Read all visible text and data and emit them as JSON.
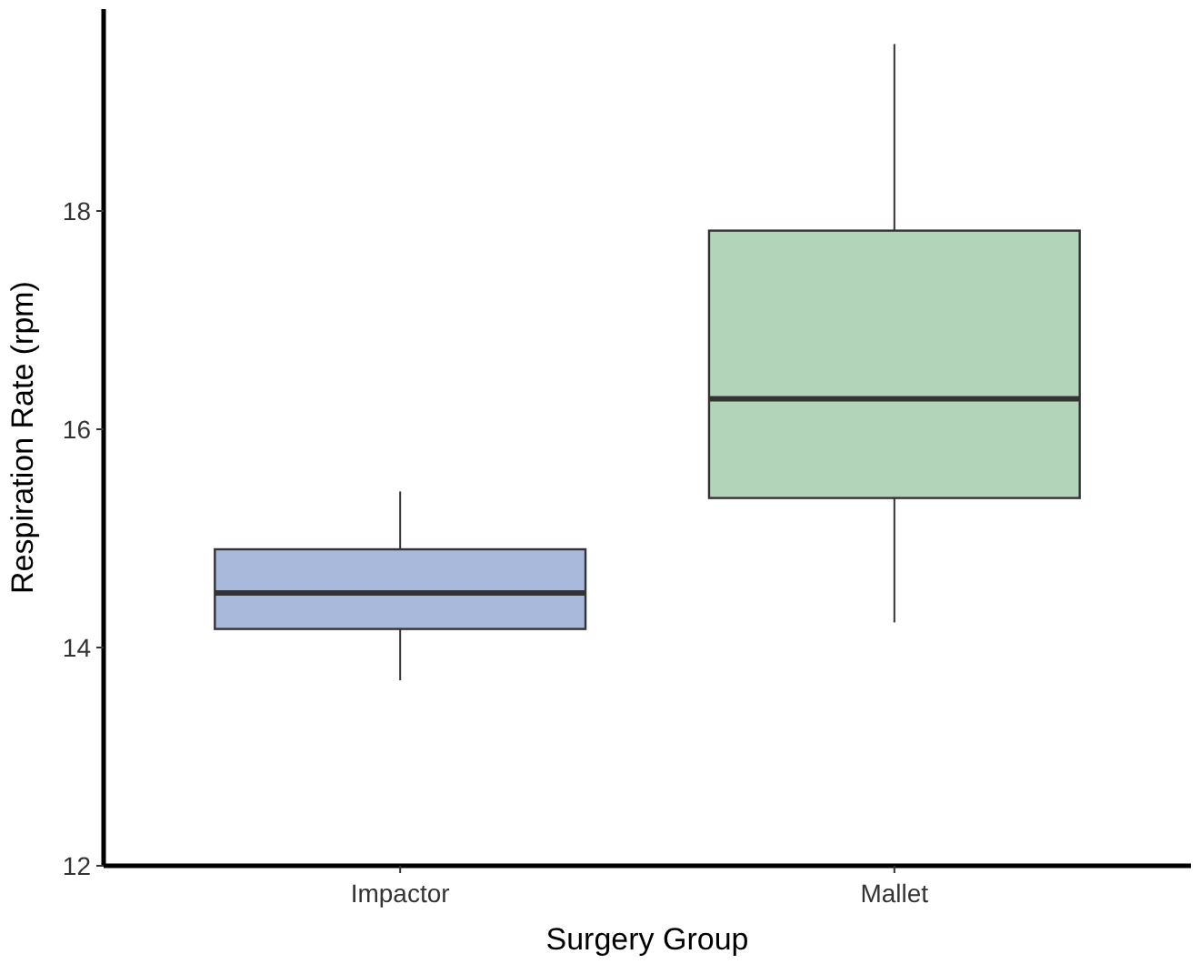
{
  "chart_data": {
    "type": "box",
    "xlabel": "Surgery Group",
    "ylabel": "Respiration Rate (rpm)",
    "categories": [
      "Impactor",
      "Mallet"
    ],
    "boxes": [
      {
        "low": 13.7,
        "q1": 14.17,
        "median": 14.5,
        "q3": 14.9,
        "high": 15.43
      },
      {
        "low": 14.23,
        "q1": 15.37,
        "median": 16.28,
        "q3": 17.82,
        "high": 19.53
      }
    ],
    "colors": [
      "#a9b9dc",
      "#b2d4b8"
    ],
    "ylim": [
      12,
      19.85
    ],
    "yticks": [
      12,
      14,
      16,
      18
    ],
    "grid": false
  }
}
